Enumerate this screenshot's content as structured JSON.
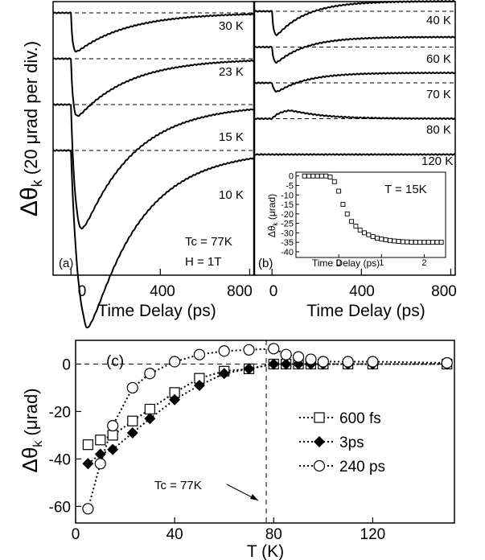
{
  "panel_a": {
    "label": "(a)",
    "xlabel": "Time Delay (ps)",
    "xticks": [
      "0",
      "400",
      "800"
    ],
    "trace_labels": [
      "30 K",
      "23 K",
      "15 K",
      "10 K"
    ],
    "note_tc": "Tc = 77K",
    "note_h": "H = 1T"
  },
  "panel_b": {
    "label": "(b)",
    "xlabel": "Time Delay (ps)",
    "xticks": [
      "0",
      "400",
      "800"
    ],
    "trace_labels": [
      "40 K",
      "60 K",
      "70 K",
      "80 K",
      "120 K"
    ]
  },
  "shared_ylabel": "Δθ",
  "shared_ylabel_sub": "k",
  "shared_ylabel_rest": " (20 μrad per div.)",
  "inset": {
    "title": "T = 15K",
    "xlabel": "Time Delay (ps)",
    "ylabel": "Δθ",
    "ylabel_sub": "k",
    "ylabel_rest": " (μrad)",
    "xticks": [
      "0",
      "1",
      "2"
    ],
    "yticks": [
      "0",
      "-5",
      "-10",
      "-15",
      "-20",
      "-25",
      "-30",
      "-35",
      "-40"
    ]
  },
  "panel_c": {
    "label": "(c)",
    "xlabel": "T (K)",
    "ylabel": "Δθ",
    "ylabel_sub": "k",
    "ylabel_rest": " (μrad)",
    "xticks": [
      "0",
      "40",
      "80",
      "120"
    ],
    "yticks": [
      "0",
      "-20",
      "-40",
      "-60"
    ],
    "annotation": "Tc = 77K"
  },
  "chart_data": [
    {
      "type": "line",
      "panel": "a",
      "x_unit": "ps",
      "xlim": [
        -80,
        820
      ],
      "series": [
        {
          "name": "30 K",
          "offset_div": 0,
          "amplitude_div": -0.9,
          "peak_ps": 15
        },
        {
          "name": "23 K",
          "offset_div": -1,
          "amplitude_div": -1.35,
          "peak_ps": 20
        },
        {
          "name": "15 K",
          "offset_div": -2,
          "amplitude_div": -3.0,
          "peak_ps": 40
        },
        {
          "name": "10 K",
          "offset_div": -3,
          "amplitude_div": -4.35,
          "peak_ps": 70
        }
      ]
    },
    {
      "type": "line",
      "panel": "b",
      "x_unit": "ps",
      "xlim": [
        -80,
        820
      ],
      "series": [
        {
          "name": "40 K",
          "offset_div": 0,
          "amplitude_div": -0.6,
          "peak_ps": 15
        },
        {
          "name": "60 K",
          "offset_div": -1,
          "amplitude_div": -0.4,
          "peak_ps": 15
        },
        {
          "name": "70 K",
          "offset_div": -2,
          "amplitude_div": -0.25,
          "peak_ps": 20
        },
        {
          "name": "80 K",
          "offset_div": -3,
          "amplitude_div": 0.2,
          "peak_ps": 80
        },
        {
          "name": "120 K",
          "offset_div": -4,
          "amplitude_div": 0,
          "peak_ps": 0
        }
      ]
    },
    {
      "type": "scatter",
      "panel": "inset",
      "xlabel": "Time Delay (ps)",
      "ylabel": "Δθk (μrad)",
      "xlim": [
        -1,
        2.5
      ],
      "ylim": [
        -43,
        2
      ],
      "x": [
        -0.8,
        -0.7,
        -0.6,
        -0.5,
        -0.4,
        -0.3,
        -0.2,
        -0.1,
        0.0,
        0.1,
        0.2,
        0.3,
        0.4,
        0.5,
        0.6,
        0.7,
        0.8,
        0.9,
        1.0,
        1.1,
        1.2,
        1.3,
        1.4,
        1.5,
        1.6,
        1.7,
        1.8,
        1.9,
        2.0,
        2.1,
        2.2,
        2.3,
        2.4
      ],
      "y": [
        0,
        0,
        0,
        0,
        0,
        0,
        -0.5,
        -3,
        -8,
        -15,
        -20,
        -24,
        -26.5,
        -28.5,
        -30,
        -31,
        -32,
        -32.8,
        -33.3,
        -33.7,
        -34,
        -34.3,
        -34.5,
        -34.7,
        -34.8,
        -34.9,
        -35,
        -35,
        -35,
        -35,
        -35,
        -35,
        -35
      ]
    },
    {
      "type": "scatter",
      "panel": "c",
      "xlabel": "T (K)",
      "ylabel": "Δθk (μrad)",
      "xlim": [
        0,
        153
      ],
      "ylim": [
        -67,
        10
      ],
      "reference_lines": {
        "y": 0,
        "x": 77
      },
      "series": [
        {
          "name": "600 fs",
          "marker": "open-square",
          "x": [
            5,
            10,
            15,
            23,
            30,
            40,
            50,
            60,
            70,
            80,
            85,
            90,
            95,
            100,
            110,
            120,
            150
          ],
          "y": [
            -34,
            -32,
            -30,
            -24,
            -19,
            -12,
            -6,
            -3,
            -2,
            0,
            0,
            0,
            0,
            0,
            0,
            0,
            0
          ]
        },
        {
          "name": "3ps",
          "marker": "filled-diamond",
          "x": [
            5,
            10,
            15,
            23,
            30,
            40,
            50,
            60,
            70,
            80,
            85,
            90,
            95,
            100,
            110,
            120,
            150
          ],
          "y": [
            -42,
            -38,
            -36,
            -29,
            -23,
            -15,
            -9,
            -4,
            -2,
            0,
            0,
            0,
            0,
            0,
            0,
            0,
            0
          ]
        },
        {
          "name": "240 ps",
          "marker": "open-circle",
          "x": [
            5,
            10,
            15,
            23,
            30,
            40,
            50,
            60,
            70,
            80,
            85,
            90,
            95,
            100,
            110,
            120,
            150
          ],
          "y": [
            -61,
            -42,
            -26,
            -10,
            -4,
            1,
            4,
            5.5,
            6,
            6.5,
            4,
            3,
            2,
            1,
            1,
            1,
            0.5
          ]
        }
      ]
    }
  ]
}
